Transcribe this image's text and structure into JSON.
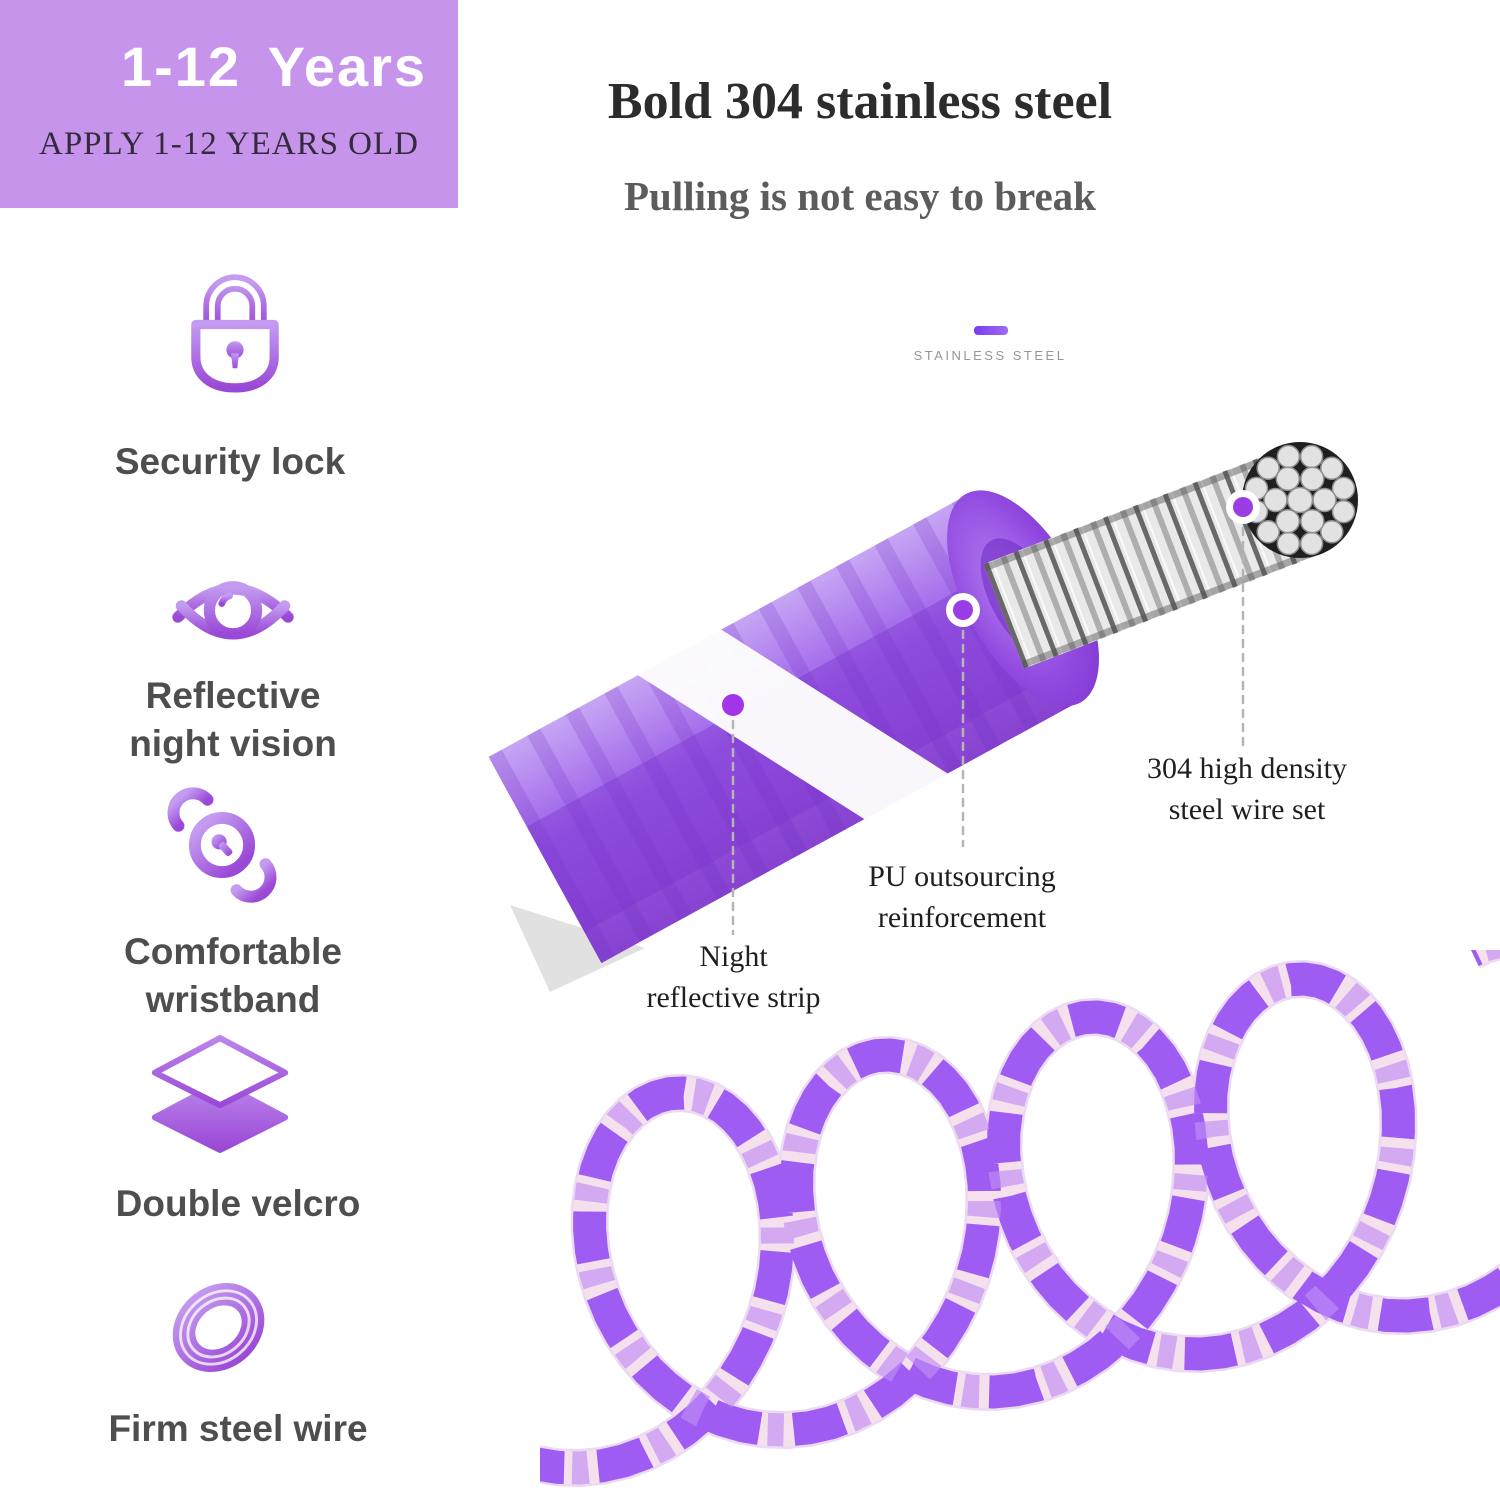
{
  "banner": {
    "title": "1-12  Years",
    "subtitle": "APPLY 1-12 YEARS OLD",
    "bg_color": "#c794ec"
  },
  "features": [
    {
      "icon": "lock-icon",
      "label": "Security lock"
    },
    {
      "icon": "eye-icon",
      "label": "Reflective night vision"
    },
    {
      "icon": "wristband-icon",
      "label": "Comfortable wristband"
    },
    {
      "icon": "layers-icon",
      "label": "Double velcro"
    },
    {
      "icon": "coil-icon",
      "label": "Firm steel wire"
    }
  ],
  "heading": {
    "title": "Bold 304 stainless steel",
    "subtitle": "Pulling is not easy to break"
  },
  "diagram": {
    "material_label": "STAINLESS STEEL",
    "callouts": [
      {
        "target": "night-reflective-strip",
        "label": "Night reflective strip"
      },
      {
        "target": "pu-outer-layer",
        "label": "PU outsourcing reinforcement"
      },
      {
        "target": "steel-wire-core",
        "label": "304 high density steel wire set"
      }
    ]
  },
  "colors": {
    "accent_purple": "#9b4de0",
    "banner_purple": "#c794ec",
    "tube_purple": "#9a5ce8",
    "steel_gray": "#e9e9e9",
    "text_dark": "#2c2c2c",
    "text_gray": "#4e4e4e"
  }
}
